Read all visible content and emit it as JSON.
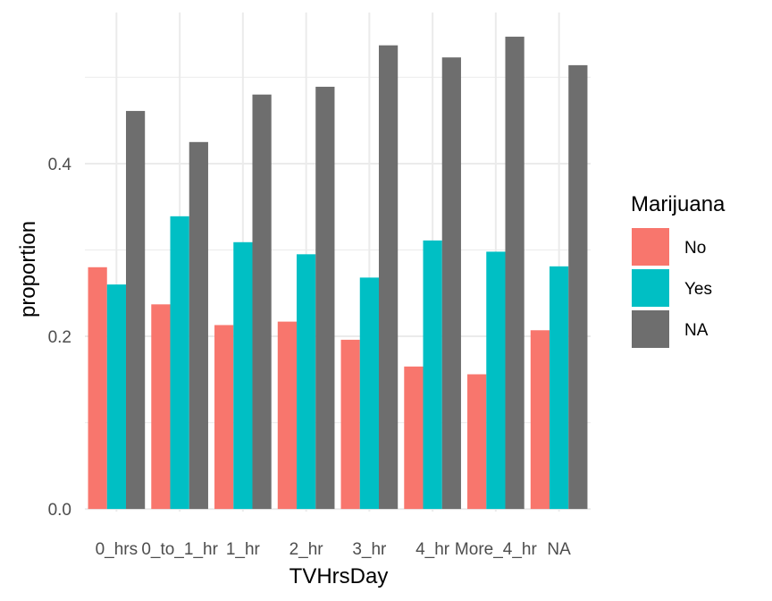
{
  "chart_data": {
    "type": "bar",
    "xlabel": "TVHrsDay",
    "ylabel": "proportion",
    "categories": [
      "0_hrs",
      "0_to_1_hr",
      "1_hr",
      "2_hr",
      "3_hr",
      "4_hr",
      "More_4_hr",
      "NA"
    ],
    "series": [
      {
        "name": "No",
        "color": "#F8766D",
        "values": [
          0.28,
          0.237,
          0.213,
          0.217,
          0.196,
          0.165,
          0.156,
          0.207
        ]
      },
      {
        "name": "Yes",
        "color": "#00BFC4",
        "values": [
          0.26,
          0.339,
          0.309,
          0.295,
          0.268,
          0.311,
          0.298,
          0.281
        ]
      },
      {
        "name": "NA",
        "color": "#6E6E6E",
        "values": [
          0.461,
          0.425,
          0.48,
          0.489,
          0.537,
          0.523,
          0.547,
          0.514
        ]
      }
    ],
    "yticks": [
      "0.0",
      "0.2",
      "0.4"
    ],
    "ylim": [
      -0.003,
      0.575
    ],
    "legend": {
      "title": "Marijuana",
      "position": "right"
    },
    "grid": true
  }
}
